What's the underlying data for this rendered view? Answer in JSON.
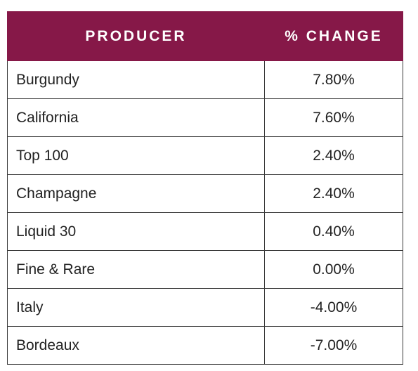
{
  "chart_data": {
    "type": "table",
    "columns": [
      "PRODUCER",
      "% CHANGE"
    ],
    "rows": [
      {
        "producer": "Burgundy",
        "change": "7.80%"
      },
      {
        "producer": "California",
        "change": "7.60%"
      },
      {
        "producer": "Top 100",
        "change": "2.40%"
      },
      {
        "producer": "Champagne",
        "change": "2.40%"
      },
      {
        "producer": "Liquid 30",
        "change": "0.40%"
      },
      {
        "producer": "Fine & Rare",
        "change": "0.00%"
      },
      {
        "producer": "Italy",
        "change": "-4.00%"
      },
      {
        "producer": "Bordeaux",
        "change": "-7.00%"
      }
    ],
    "colors": {
      "header_bg": "#861848",
      "header_text": "#ffffff",
      "border": "#3a3a3a"
    }
  }
}
